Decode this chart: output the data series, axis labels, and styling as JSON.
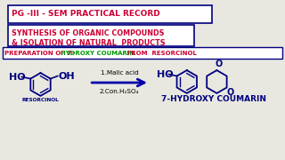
{
  "bg_color": "#e8e8e0",
  "title1": "PG -III - SEM PRACTICAL RECORD",
  "title1_color": "#cc0033",
  "title1_border": "#000080",
  "title2_line1": "SYNTHESIS OF ORGANIC COMPOUNDS",
  "title2_line2": "& ISOLATION OF NATURAL  PRODUCTS",
  "title2_color": "#cc0033",
  "title2_border": "#000080",
  "title3_part1": "PREPARATION OF 7- ",
  "title3_part2": "HYDROXY COUMARIN",
  "title3_part3": " FROM  RESORCINOL",
  "title3_color1": "#cc0033",
  "title3_color2": "#009900",
  "title3_border": "#000080",
  "resorcinol_label": "RESORCINOL",
  "product_label": "7-HYDROXY COUMARIN",
  "reagent1": "1.Malic acid",
  "reagent2": "2.Con.H₂SO₄",
  "arrow_color": "#0000aa",
  "struct_color": "#000080"
}
